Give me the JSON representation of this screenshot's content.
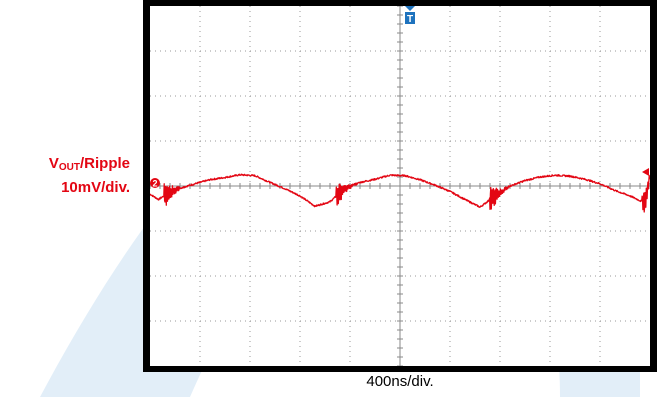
{
  "chart_data": {
    "type": "line",
    "title": "",
    "channel_marker": "2",
    "trigger_marker": "T",
    "y_label": {
      "v": "V",
      "sub": "OUT",
      "rest": "/Ripple",
      "scale": "10mV/div."
    },
    "x_label": "400ns/div.",
    "grid": {
      "x_divisions": 10,
      "y_divisions": 8,
      "minor_per_division": 5
    },
    "xlim": [
      0,
      10
    ],
    "ylim": [
      -4,
      4
    ],
    "series": [
      {
        "color": "#e30613",
        "x": [
          0,
          0.17,
          0.33,
          0.6,
          0.9,
          1.2,
          1.5,
          1.8,
          2.1,
          2.4,
          2.7,
          3.0,
          3.3,
          3.6,
          3.9,
          4.2,
          4.5,
          4.8,
          5.1,
          5.4,
          5.7,
          6.0,
          6.3,
          6.6,
          6.9,
          7.2,
          7.5,
          7.8,
          8.1,
          8.4,
          8.7,
          9.0,
          9.3,
          9.6,
          9.9,
          10.0
        ],
        "y": [
          -0.18,
          -0.3,
          -0.18,
          -0.05,
          0.05,
          0.14,
          0.19,
          0.25,
          0.23,
          0.08,
          -0.06,
          -0.22,
          -0.45,
          -0.35,
          -0.05,
          0.08,
          0.15,
          0.24,
          0.23,
          0.14,
          0.02,
          -0.12,
          -0.3,
          -0.47,
          -0.22,
          0.0,
          0.12,
          0.2,
          0.24,
          0.22,
          0.15,
          0.05,
          -0.1,
          -0.22,
          -0.38,
          0.25
        ]
      }
    ],
    "ripple_bursts": [
      {
        "x": 0.33,
        "amplitude": 0.35
      },
      {
        "x": 3.78,
        "amplitude": 0.32
      },
      {
        "x": 6.85,
        "amplitude": 0.33
      },
      {
        "x": 9.9,
        "amplitude": 0.3
      }
    ]
  }
}
